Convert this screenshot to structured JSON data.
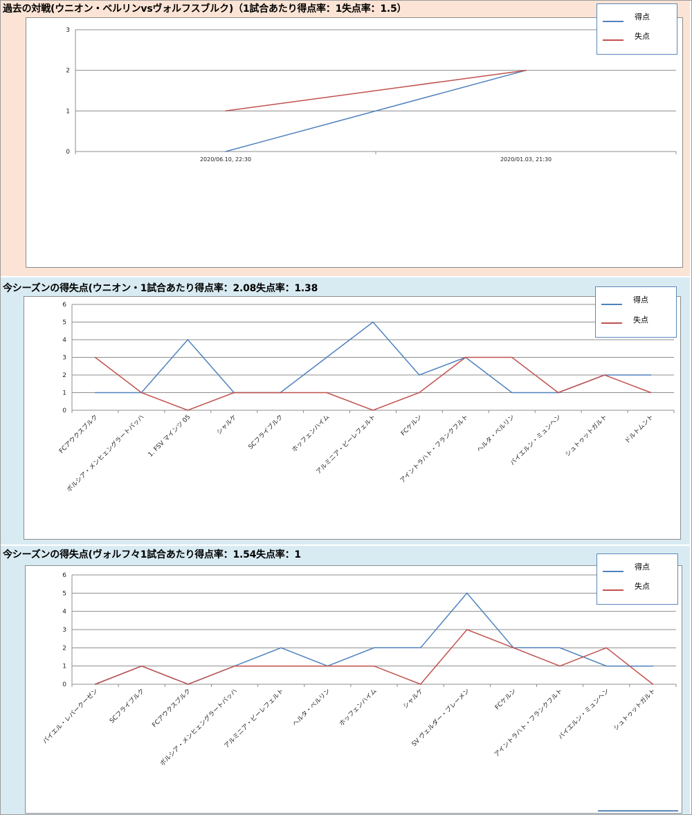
{
  "colors": {
    "panel1_bg": "#fbe4d5",
    "panel2_bg": "#d9ebf2",
    "panel3_bg": "#d9ebf2",
    "score_line": "#4f81bd",
    "concede_line": "#c0504d",
    "grid": "#8c8c8c"
  },
  "chart_data": [
    {
      "type": "line",
      "title": "過去の対戦(ウニオン・ベルリンvsヴォルフスブルク)（1試合あたり得点率：1失点率：1.5）",
      "categories": [
        "2020/06.10, 22:30",
        "2020/01.03, 21:30"
      ],
      "series": [
        {
          "name": "得点",
          "values": [
            0,
            2
          ]
        },
        {
          "name": "失点",
          "values": [
            1,
            2
          ]
        }
      ],
      "ylim": [
        0,
        3
      ],
      "yticks": [
        "0",
        "1",
        "2",
        "3"
      ],
      "grid": true,
      "legend_position": "top-right"
    },
    {
      "type": "line",
      "title": "今シーズンの得失点(ウニオン・1試合あたり得点率：2.08失点率：1.38",
      "categories": [
        "FCアウクスブルク",
        "ボルシア・メンヒェングラートバッハ",
        "1. FSV マインツ 05",
        "シャルケ",
        "SCフライブルク",
        "ホッフェンハイム",
        "アルミニア・ビーレフェルト",
        "FCケルン",
        "アイントラハト・フランクフルト",
        "ヘルタ・ベルリン",
        "バイエルン・ミュンヘン",
        "シュトゥットガルト",
        "ドルトムント"
      ],
      "series": [
        {
          "name": "得点",
          "values": [
            1,
            1,
            4,
            1,
            1,
            3,
            5,
            2,
            3,
            1,
            1,
            2,
            2
          ]
        },
        {
          "name": "失点",
          "values": [
            3,
            1,
            0,
            1,
            1,
            1,
            0,
            1,
            3,
            3,
            1,
            2,
            1
          ]
        }
      ],
      "ylim": [
        0,
        6
      ],
      "yticks": [
        "0",
        "1",
        "2",
        "3",
        "4",
        "5",
        "6"
      ],
      "grid": true,
      "legend_position": "top-right"
    },
    {
      "type": "line",
      "title": "今シーズンの得失点(ヴォルフ々1試合あたり得点率：1.54失点率：1",
      "categories": [
        "バイエル・レバークーゼン",
        "SCフライブルク",
        "FCアウクスブルク",
        "ボルシア・メンヒェングラートバッハ",
        "アルミニア・ビーレフェルト",
        "ヘルタ・ベルリン",
        "ホッフェンハイム",
        "シャルケ",
        "SV ヴェルダー・ブレーメン",
        "FCケルン",
        "アイントラハト・フランクフルト",
        "バイエルン・ミュンヘン",
        "シュトゥットガルト"
      ],
      "series": [
        {
          "name": "得点",
          "values": [
            0,
            1,
            0,
            1,
            2,
            1,
            2,
            2,
            5,
            2,
            2,
            1,
            1
          ]
        },
        {
          "name": "失点",
          "values": [
            0,
            1,
            0,
            1,
            1,
            1,
            1,
            0,
            3,
            2,
            1,
            2,
            0
          ]
        }
      ],
      "ylim": [
        0,
        6
      ],
      "yticks": [
        "0",
        "1",
        "2",
        "3",
        "4",
        "5",
        "6"
      ],
      "grid": true,
      "legend_position": "top-right"
    }
  ]
}
